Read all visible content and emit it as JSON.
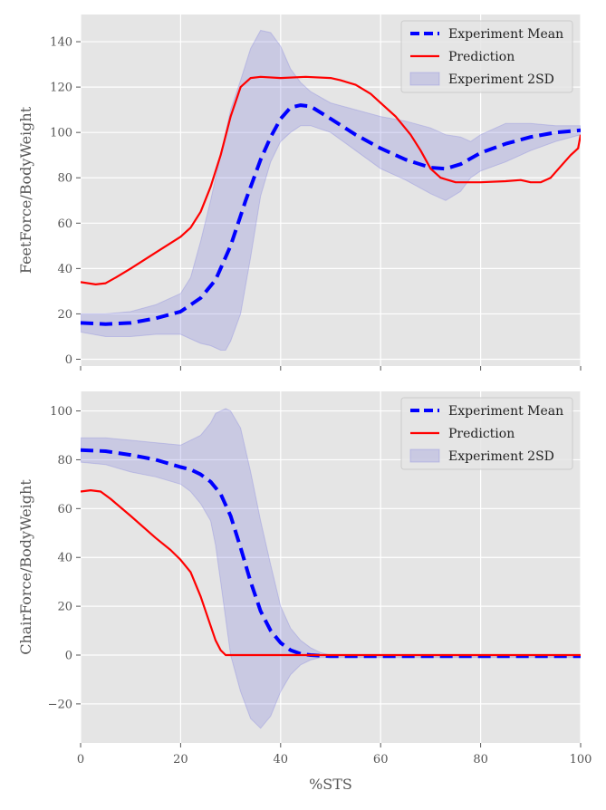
{
  "chart_data": [
    {
      "type": "line",
      "xlabel": "",
      "ylabel": "FeetForce/BodyWeight",
      "xlim": [
        0,
        100
      ],
      "ylim": [
        -3,
        152
      ],
      "xticks": [
        0,
        20,
        40,
        60,
        80,
        100
      ],
      "yticks": [
        0,
        20,
        40,
        60,
        80,
        100,
        120,
        140
      ],
      "show_xtick_labels": false,
      "grid": true,
      "legend_position": "top-right",
      "series": [
        {
          "name": "Experiment Mean",
          "color": "#0000ff",
          "style": "dashed",
          "x": [
            0,
            5,
            10,
            15,
            20,
            24,
            27,
            30,
            33,
            36,
            38,
            40,
            42,
            44,
            46,
            50,
            55,
            60,
            65,
            70,
            73,
            76,
            80,
            85,
            90,
            95,
            100
          ],
          "y": [
            16,
            15.5,
            16,
            18,
            21,
            27,
            35,
            50,
            70,
            88,
            98,
            106,
            111,
            112,
            111.5,
            106,
            99,
            93,
            88,
            84.5,
            84,
            86,
            91,
            95,
            98,
            100,
            101
          ]
        },
        {
          "name": "Prediction",
          "color": "#ff0000",
          "style": "solid",
          "x": [
            0,
            3,
            5,
            7,
            10,
            15,
            20,
            22,
            24,
            26,
            28,
            30,
            32,
            34,
            36,
            40,
            45,
            50,
            52,
            55,
            58,
            60,
            63,
            66,
            68,
            70,
            72,
            75,
            80,
            85,
            88,
            90,
            92,
            94,
            96,
            98,
            99.5,
            100
          ],
          "y": [
            34,
            33,
            33.5,
            36,
            40,
            47,
            54,
            58,
            65,
            76,
            90,
            107,
            120,
            124,
            124.5,
            124,
            124.5,
            124,
            123,
            121,
            117,
            113,
            107,
            99,
            92,
            84,
            80,
            78,
            78,
            78.5,
            79,
            78,
            78,
            80,
            85,
            90,
            93,
            99
          ]
        },
        {
          "name": "Experiment 2SD",
          "color": "#7777dd",
          "style": "band",
          "x": [
            0,
            5,
            10,
            15,
            20,
            22,
            24,
            26,
            28,
            29,
            30,
            32,
            34,
            36,
            38,
            40,
            42,
            44,
            46,
            50,
            55,
            60,
            65,
            70,
            73,
            76,
            78,
            80,
            85,
            90,
            95,
            100
          ],
          "upper": [
            20,
            20,
            21,
            24,
            29,
            36,
            52,
            70,
            90,
            100,
            110,
            123,
            137,
            145,
            144,
            138,
            128,
            122,
            118,
            113,
            110,
            107,
            105,
            102,
            99,
            98,
            96,
            99,
            104,
            104,
            103,
            103
          ],
          "lower": [
            12,
            10,
            10,
            11,
            11,
            9,
            7,
            6,
            4,
            4,
            8,
            20,
            45,
            72,
            87,
            96,
            100,
            103,
            103,
            100,
            92,
            84,
            79,
            73,
            70,
            74,
            80,
            83,
            87,
            92,
            96,
            99
          ]
        }
      ]
    },
    {
      "type": "line",
      "xlabel": "%STS",
      "ylabel": "ChairForce/BodyWeight",
      "xlim": [
        0,
        100
      ],
      "ylim": [
        -36,
        108
      ],
      "xticks": [
        0,
        20,
        40,
        60,
        80,
        100
      ],
      "yticks": [
        -20,
        0,
        20,
        40,
        60,
        80,
        100
      ],
      "show_xtick_labels": true,
      "grid": true,
      "legend_position": "top-right",
      "series": [
        {
          "name": "Experiment Mean",
          "color": "#0000ff",
          "style": "dashed",
          "x": [
            0,
            5,
            10,
            15,
            20,
            22,
            24,
            26,
            28,
            30,
            32,
            34,
            36,
            38,
            40,
            42,
            44,
            46,
            50,
            55,
            60,
            70,
            80,
            90,
            100
          ],
          "y": [
            84,
            83.5,
            82,
            80,
            77,
            76,
            74,
            71,
            66,
            57,
            44,
            30,
            18,
            10,
            5,
            2,
            0.5,
            0,
            -0.5,
            -0.5,
            -0.5,
            -0.5,
            -0.5,
            -0.5,
            -0.5
          ]
        },
        {
          "name": "Prediction",
          "color": "#ff0000",
          "style": "solid",
          "x": [
            0,
            2,
            4,
            6,
            10,
            15,
            18,
            20,
            22,
            24,
            26,
            27,
            28,
            29,
            30,
            40,
            50,
            60,
            70,
            80,
            90,
            100
          ],
          "y": [
            67,
            67.5,
            67,
            64,
            57,
            48,
            43,
            39,
            34,
            24,
            12,
            6,
            2,
            0,
            0,
            0,
            0,
            0,
            0,
            0,
            0,
            0
          ]
        },
        {
          "name": "Experiment 2SD",
          "color": "#7777dd",
          "style": "band",
          "x": [
            0,
            5,
            10,
            15,
            20,
            22,
            24,
            26,
            27,
            28,
            29,
            30,
            32,
            34,
            36,
            38,
            40,
            42,
            44,
            46,
            48,
            50,
            55,
            60,
            70,
            80,
            90,
            100
          ],
          "upper": [
            89,
            89,
            88,
            87,
            86,
            88,
            90,
            95,
            99,
            100,
            101,
            100,
            93,
            75,
            55,
            37,
            20,
            11,
            6,
            3,
            1,
            0,
            0,
            0,
            0,
            0,
            0,
            0
          ],
          "lower": [
            79,
            78,
            75,
            73,
            70,
            67,
            62,
            55,
            45,
            30,
            15,
            0,
            -15,
            -26,
            -30,
            -25,
            -15,
            -8,
            -4,
            -2,
            -1,
            -1,
            -1,
            -1,
            -1,
            -1,
            -1,
            -1
          ]
        }
      ]
    }
  ]
}
